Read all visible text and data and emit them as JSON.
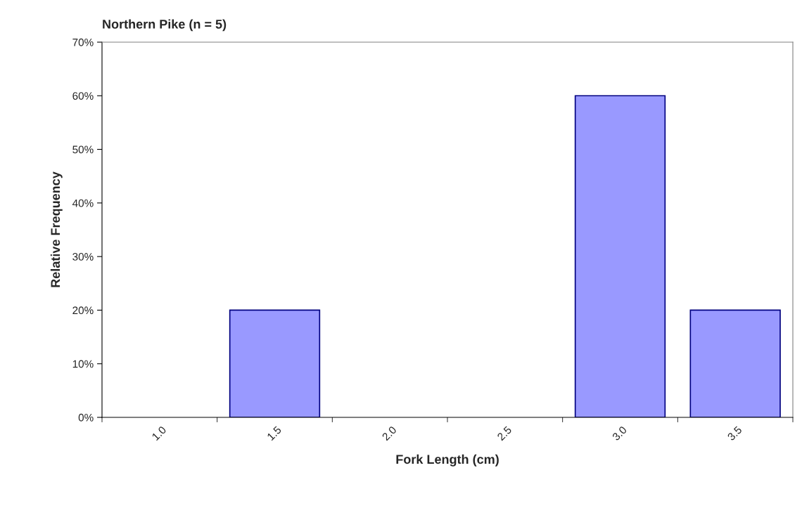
{
  "chart_data": {
    "type": "bar",
    "title": "Northern Pike (n = 5)",
    "xlabel": "Fork Length (cm)",
    "ylabel": "Relative Frequency",
    "categories": [
      "1.0",
      "1.5",
      "2.0",
      "2.5",
      "3.0",
      "3.5"
    ],
    "values": [
      0,
      20,
      0,
      0,
      60,
      20
    ],
    "color": "#9999ff",
    "ylim": [
      0,
      70
    ],
    "yticks": [
      {
        "value": 0,
        "label": "0%"
      },
      {
        "value": 10,
        "label": "10%"
      },
      {
        "value": 20,
        "label": "20%"
      },
      {
        "value": 30,
        "label": "30%"
      },
      {
        "value": 40,
        "label": "40%"
      },
      {
        "value": 50,
        "label": "50%"
      },
      {
        "value": 60,
        "label": "60%"
      },
      {
        "value": 70,
        "label": "70%"
      }
    ],
    "grid": false,
    "legend": false
  }
}
